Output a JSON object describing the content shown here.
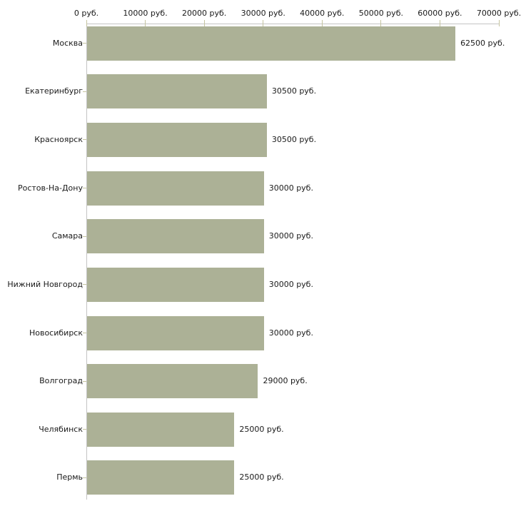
{
  "chart_data": {
    "type": "bar",
    "orientation": "horizontal",
    "title": "",
    "categories": [
      "Москва",
      "Екатеринбург",
      "Красноярск",
      "Ростов-На-Дону",
      "Самара",
      "Нижний Новгород",
      "Новосибирск",
      "Волгоград",
      "Челябинск",
      "Пермь"
    ],
    "values": [
      62500,
      30500,
      30500,
      30000,
      30000,
      30000,
      30000,
      29000,
      25000,
      25000
    ],
    "value_labels": [
      "62500 руб.",
      "30500 руб.",
      "30500 руб.",
      "30000 руб.",
      "30000 руб.",
      "30000 руб.",
      "30000 руб.",
      "29000 руб.",
      "25000 руб.",
      "25000 руб."
    ],
    "x_ticks": [
      0,
      10000,
      20000,
      30000,
      40000,
      50000,
      60000,
      70000
    ],
    "x_tick_labels": [
      "0 руб.",
      "10000 руб.",
      "20000 руб.",
      "30000 руб.",
      "40000 руб.",
      "50000 руб.",
      "60000 руб.",
      "70000 руб."
    ],
    "xlim": [
      0,
      70000
    ],
    "unit": "руб.",
    "ylabel": "",
    "xlabel": "",
    "grid": false,
    "legend": "none",
    "colors": {
      "bar": "#acb196",
      "axis_line": "#c4c4c4",
      "tick_mark": "#c5c4a0",
      "text": "#1a1a1a",
      "background": "#ffffff"
    }
  }
}
